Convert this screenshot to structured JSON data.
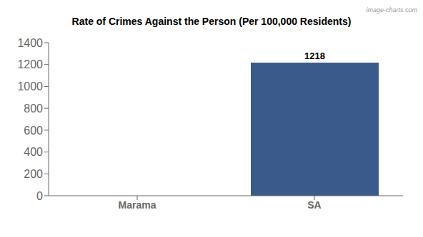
{
  "chart_data": {
    "type": "bar",
    "title": "Rate of Crimes Against the Person (Per 100,000 Residents)",
    "annotations": [
      "image-charts.com"
    ],
    "categories": [
      "Marama",
      "SA"
    ],
    "values": [
      0,
      1218
    ],
    "color": "#3a5a8c",
    "ylim": [
      0,
      1400
    ],
    "yticks": [
      0,
      200,
      400,
      600,
      800,
      1000,
      1200,
      1400
    ],
    "grid": false,
    "data_labels": true
  }
}
